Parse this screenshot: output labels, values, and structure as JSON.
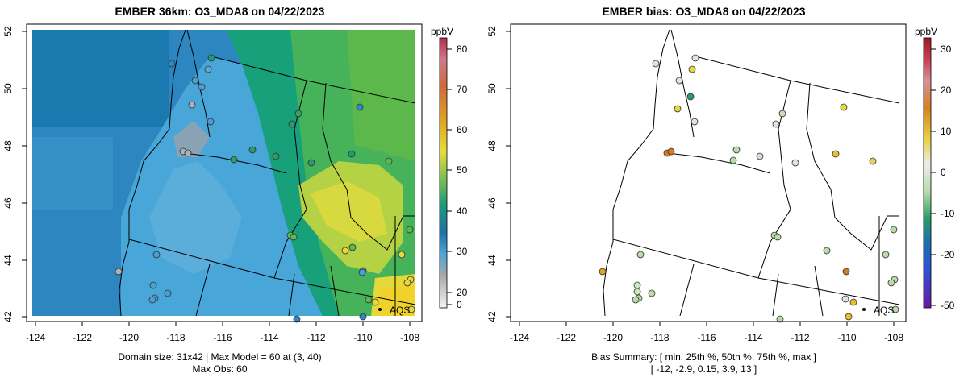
{
  "left_panel": {
    "title": "EMBER 36km: O3_MDA8 on 04/22/2023",
    "caption_line1": "Domain size: 31x42 | Max Model = 60 at (3, 40)",
    "caption_line2": "Max Obs: 60",
    "units": "ppbV",
    "colorbar_ticks": [
      "80",
      "70",
      "60",
      "50",
      "40",
      "30",
      "20",
      "0"
    ],
    "station_label": "AQS"
  },
  "right_panel": {
    "title": "EMBER bias: O3_MDA8 on 04/22/2023",
    "caption_line1": "Bias Summary: [ min, 25th %, 50th %, 75th %, max ]",
    "caption_line2": "[ -12,  -2.9,  0.15,  3.9,  13 ]",
    "units": "ppbV",
    "colorbar_ticks": [
      "30",
      "20",
      "10",
      "0",
      "-10",
      "-20",
      "-50"
    ],
    "station_label": "AQS"
  },
  "axes": {
    "x_ticks": [
      "-124",
      "-122",
      "-120",
      "-118",
      "-116",
      "-114",
      "-112",
      "-110",
      "-108"
    ],
    "y_ticks": [
      "42",
      "44",
      "46",
      "48",
      "50",
      "52"
    ],
    "lon_range": [
      -124,
      -108
    ],
    "lat_range": [
      42,
      52
    ]
  },
  "colors": {
    "ocean_model": "#2e86c1",
    "coastal_model": "#49a6d8",
    "inland_model": "#17a07a",
    "east_model": "#5cb84a",
    "peak_model": "#e4d83a"
  }
}
